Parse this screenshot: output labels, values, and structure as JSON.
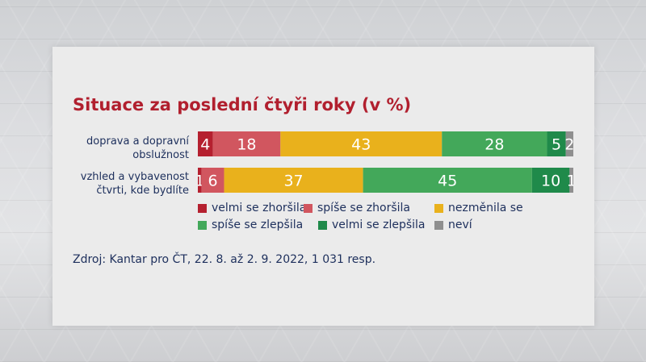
{
  "chart_data": {
    "type": "bar",
    "orientation": "horizontal",
    "stacked": true,
    "title": "Situace za poslední čtyři roky (v %)",
    "categories": [
      "doprava a dopravní obslužnost",
      "vzhled a vybavenost čtvrti, kde bydlíte"
    ],
    "category_lines": [
      [
        "doprava a dopravní",
        "obslužnost"
      ],
      [
        "vzhled a vybavenost",
        "čtvrti, kde bydlíte"
      ]
    ],
    "series": [
      {
        "name": "velmi se zhoršila",
        "color": "#b5202f",
        "values": [
          4,
          1
        ]
      },
      {
        "name": "spíše se zhoršila",
        "color": "#d1565f",
        "values": [
          18,
          6
        ]
      },
      {
        "name": "nezměnila se",
        "color": "#e9b11c",
        "values": [
          43,
          37
        ]
      },
      {
        "name": "spíše se zlepšila",
        "color": "#43a85a",
        "values": [
          28,
          45
        ]
      },
      {
        "name": "velmi se zlepšila",
        "color": "#1f8a4a",
        "values": [
          5,
          10
        ]
      },
      {
        "name": "neví",
        "color": "#8f8f8f",
        "values": [
          2,
          1
        ]
      }
    ],
    "xlim": [
      0,
      100
    ],
    "legend_position": "bottom"
  },
  "source": "Zdroj: Kantar pro ČT, 22. 8. až 2. 9. 2022, 1 031 resp."
}
